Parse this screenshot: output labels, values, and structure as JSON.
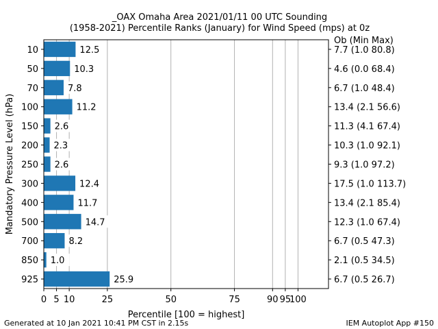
{
  "chart_data": {
    "type": "bar",
    "orientation": "horizontal",
    "title": "_OAX Omaha Area  2021/01/11 00 UTC Sounding",
    "subtitle": "(1958-2021) Percentile Ranks (January) for Wind Speed (mps) at 0z",
    "xlabel": "Percentile [100 = highest]",
    "ylabel": "Mandatory Pressure Level (hPa)",
    "xlim": [
      0,
      112
    ],
    "xticks": [
      0,
      5,
      10,
      25,
      50,
      75,
      90,
      95,
      100
    ],
    "grid": true,
    "bar_color": "#1f77b4",
    "right_header": "Ob  (Min  Max)",
    "categories": [
      "10",
      "50",
      "70",
      "100",
      "150",
      "200",
      "250",
      "300",
      "400",
      "500",
      "700",
      "850",
      "925"
    ],
    "values": [
      12.5,
      10.3,
      7.8,
      11.2,
      2.6,
      2.3,
      2.6,
      12.4,
      11.7,
      14.7,
      8.2,
      1.0,
      25.9
    ],
    "bar_labels": [
      "12.5",
      "10.3",
      "7.8",
      "11.2",
      "2.6",
      "2.3",
      "2.6",
      "12.4",
      "11.7",
      "14.7",
      "8.2",
      "1.0",
      "25.9"
    ],
    "right_labels": [
      "7.7 (1.0 80.8)",
      "4.6 (0.0 68.4)",
      "6.7 (1.0 48.4)",
      "13.4 (2.1 56.6)",
      "11.3 (4.1 67.4)",
      "10.3 (1.0 92.1)",
      "9.3 (1.0 97.2)",
      "17.5 (1.0 113.7)",
      "13.4 (2.1 85.4)",
      "12.3 (1.0 67.4)",
      "6.7 (0.5 47.3)",
      "2.1 (0.5 34.5)",
      "6.7 (0.5 26.7)"
    ]
  },
  "footer": {
    "left": "Generated at 10 Jan 2021 10:41 PM CST in 2.15s",
    "right": "IEM Autoplot App #150"
  }
}
